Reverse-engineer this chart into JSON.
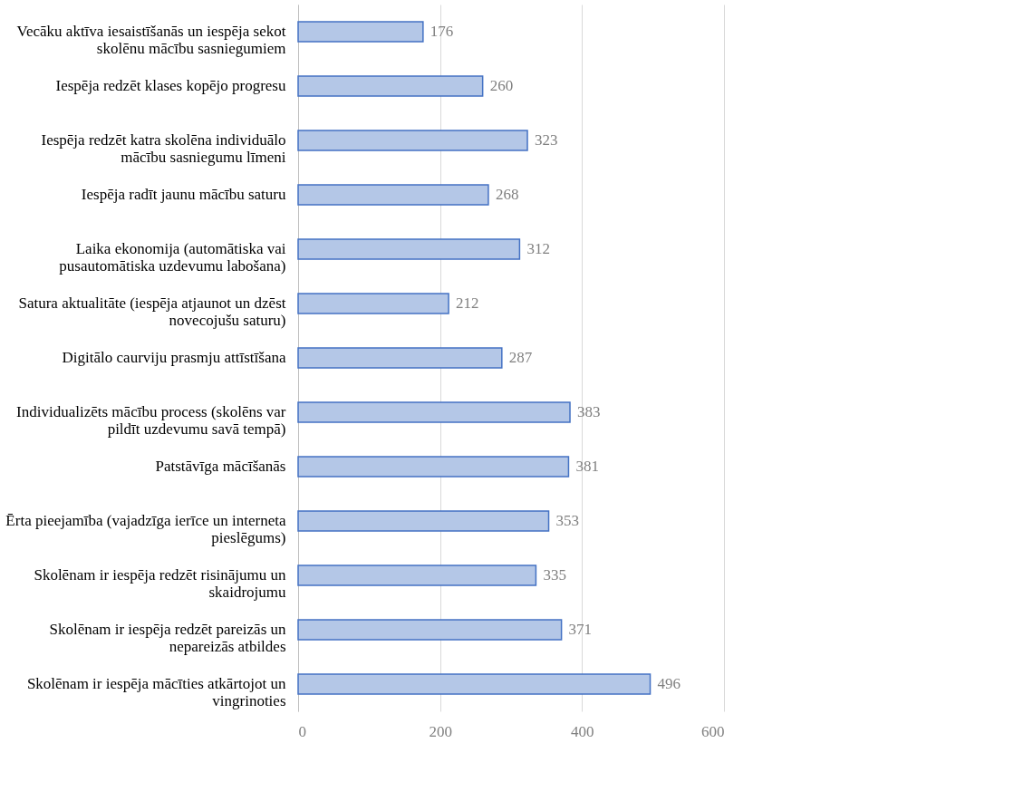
{
  "chart_data": {
    "type": "bar",
    "orientation": "horizontal",
    "categories": [
      "Vecāku aktīva iesaistīšanās un iespēja sekot skolēnu mācību sasniegumiem",
      "Iespēja redzēt klases kopējo progresu",
      "Iespēja redzēt katra skolēna individuālo mācību sasniegumu līmeni",
      "Iespēja radīt jaunu mācību saturu",
      "Laika ekonomija (automātiska vai pusautomātiska uzdevumu labošana)",
      "Satura aktualitāte (iespēja atjaunot un dzēst novecojušu saturu)",
      "Digitālo caurviju prasmju attīstīšana",
      "Individualizēts mācību process (skolēns var pildīt uzdevumu savā tempā)",
      "Patstāvīga mācīšanās",
      "Ērta pieejamība (vajadzīga ierīce un interneta pieslēgums)",
      "Skolēnam ir iespēja redzēt risinājumu un skaidrojumu",
      "Skolēnam ir iespēja redzēt pareizās un nepareizās atbildes",
      "Skolēnam ir iespēja mācīties atkārtojot un vingrinoties"
    ],
    "values": [
      176,
      260,
      323,
      268,
      312,
      212,
      287,
      383,
      381,
      353,
      335,
      371,
      496
    ],
    "color": "#b4c7e7",
    "xlim": [
      0,
      600
    ],
    "xticks": [
      0,
      200,
      400,
      600
    ],
    "grid": "x",
    "data_labels": true
  }
}
